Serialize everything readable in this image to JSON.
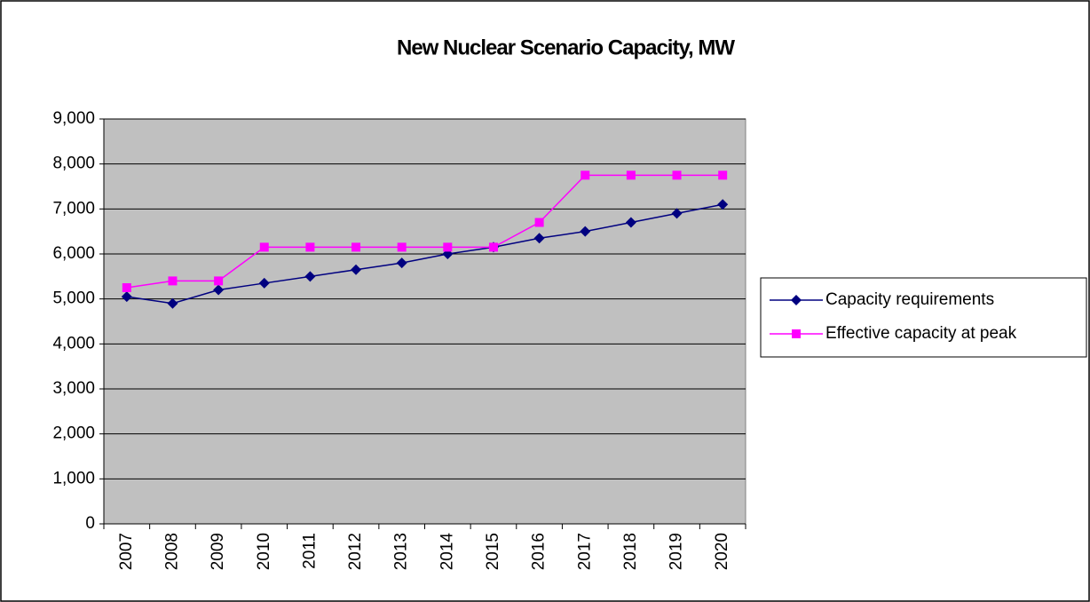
{
  "chart_data": {
    "type": "line",
    "title": "New Nuclear Scenario Capacity, MW",
    "categories": [
      "2007",
      "2008",
      "2009",
      "2010",
      "2011",
      "2012",
      "2013",
      "2014",
      "2015",
      "2016",
      "2017",
      "2018",
      "2019",
      "2020"
    ],
    "series": [
      {
        "name": "Capacity requirements",
        "color": "#000080",
        "marker": "diamond",
        "values": [
          5050,
          4900,
          5200,
          5350,
          5500,
          5650,
          5800,
          6000,
          6150,
          6350,
          6500,
          6700,
          6900,
          7100
        ]
      },
      {
        "name": "Effective capacity at peak",
        "color": "#ff00ff",
        "marker": "square",
        "values": [
          5250,
          5400,
          5400,
          6150,
          6150,
          6150,
          6150,
          6150,
          6150,
          6700,
          7750,
          7750,
          7750,
          7750
        ]
      }
    ],
    "ylim": [
      0,
      9000
    ],
    "yticks": [
      0,
      {
        "value": 1000,
        "label": "1,000"
      },
      {
        "value": 2000,
        "label": "2,000"
      },
      {
        "value": 3000,
        "label": "3,000"
      },
      {
        "value": 4000,
        "label": "4,000"
      },
      {
        "value": 5000,
        "label": "5,000"
      },
      {
        "value": 6000,
        "label": "6,000"
      },
      {
        "value": 7000,
        "label": "7,000"
      },
      {
        "value": 8000,
        "label": "8,000"
      },
      {
        "value": 9000,
        "label": "9,000"
      }
    ],
    "grid": true,
    "legend": "right"
  }
}
